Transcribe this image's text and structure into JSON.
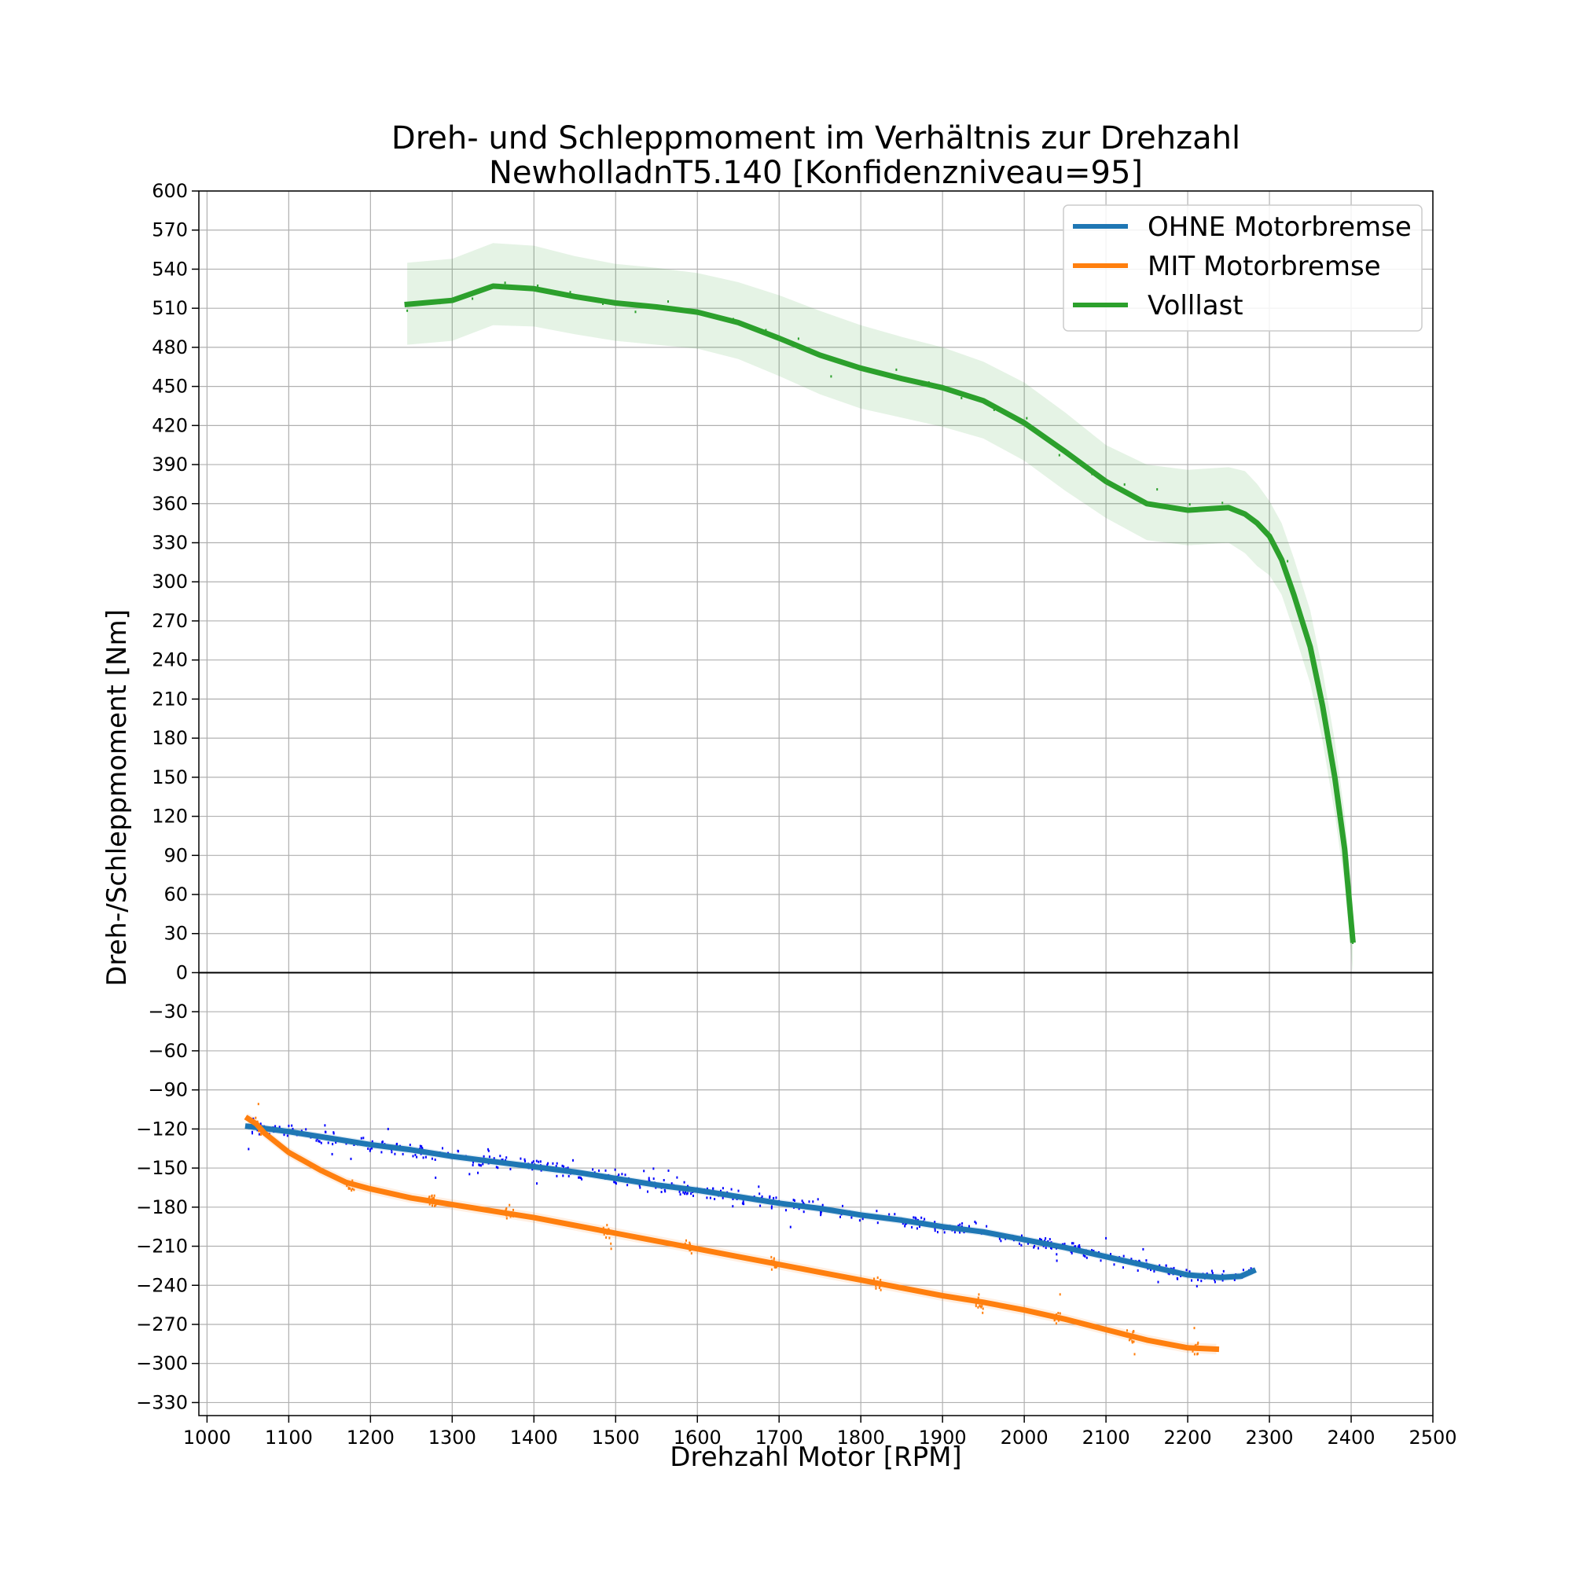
{
  "chart_data": {
    "type": "line",
    "title": "Dreh- und Schleppmoment im Verhältnis zur Drehzahl",
    "subtitle": "NewholladnT5.140 [Konfidenzniveau=95]",
    "xlabel": "Drehzahl Motor [RPM]",
    "ylabel": "Dreh-/Schleppmoment [Nm]",
    "xlim": [
      990,
      2500
    ],
    "ylim": [
      -340,
      600
    ],
    "xticks": [
      1000,
      1100,
      1200,
      1300,
      1400,
      1500,
      1600,
      1700,
      1800,
      1900,
      2000,
      2100,
      2200,
      2300,
      2400,
      2500
    ],
    "yticks": [
      600,
      570,
      540,
      510,
      480,
      450,
      420,
      390,
      360,
      330,
      300,
      270,
      240,
      210,
      180,
      150,
      120,
      90,
      60,
      30,
      0,
      -30,
      -60,
      -90,
      -120,
      -150,
      -180,
      -210,
      -240,
      -270,
      -300,
      -330
    ],
    "xtick_labels": [
      "1000",
      "1100",
      "1200",
      "1300",
      "1400",
      "1500",
      "1600",
      "1700",
      "1800",
      "1900",
      "2000",
      "2100",
      "2200",
      "2300",
      "2400",
      "2500"
    ],
    "ytick_labels": [
      "600",
      "570",
      "540",
      "510",
      "480",
      "450",
      "420",
      "390",
      "360",
      "330",
      "300",
      "270",
      "240",
      "210",
      "180",
      "150",
      "120",
      "90",
      "60",
      "30",
      "0",
      "−30",
      "−60",
      "−90",
      "−120",
      "−150",
      "−180",
      "−210",
      "−240",
      "−270",
      "−300",
      "−330"
    ],
    "grid": true,
    "zero_line": true,
    "legend_position": "top-right",
    "confidence_band": true,
    "series": [
      {
        "name": "OHNE Motorbremse",
        "color": "#1f77b4",
        "scatter_color": "#0000ff",
        "x": [
          1050,
          1100,
          1150,
          1200,
          1250,
          1300,
          1350,
          1400,
          1450,
          1500,
          1550,
          1600,
          1650,
          1700,
          1750,
          1800,
          1850,
          1900,
          1950,
          2000,
          2050,
          2100,
          2150,
          2200,
          2240,
          2265,
          2280
        ],
        "y": [
          -118,
          -122,
          -127,
          -132,
          -136,
          -141,
          -145,
          -149,
          -153,
          -158,
          -163,
          -167,
          -172,
          -177,
          -181,
          -186,
          -190,
          -195,
          -199,
          -205,
          -211,
          -218,
          -225,
          -232,
          -234,
          -233,
          -229
        ],
        "band": 3
      },
      {
        "name": "MIT Motorbremse",
        "color": "#ff7f0e",
        "scatter_color": "#ff7f0e",
        "x": [
          1050,
          1060,
          1070,
          1100,
          1140,
          1170,
          1200,
          1250,
          1300,
          1350,
          1400,
          1450,
          1500,
          1550,
          1600,
          1650,
          1700,
          1750,
          1800,
          1850,
          1900,
          1950,
          2000,
          2050,
          2100,
          2150,
          2200,
          2235
        ],
        "y": [
          -112,
          -116,
          -123,
          -138,
          -152,
          -161,
          -166,
          -173,
          -178,
          -183,
          -188,
          -194,
          -200,
          -206,
          -212,
          -218,
          -224,
          -230,
          -236,
          -242,
          -248,
          -253,
          -259,
          -266,
          -274,
          -282,
          -288,
          -289
        ],
        "band": 4
      },
      {
        "name": "Volllast",
        "color": "#2ca02c",
        "scatter_color": "#2ca02c",
        "x": [
          1245,
          1300,
          1350,
          1400,
          1450,
          1500,
          1550,
          1600,
          1650,
          1700,
          1750,
          1800,
          1850,
          1900,
          1950,
          2000,
          2050,
          2100,
          2150,
          2200,
          2250,
          2270,
          2285,
          2300,
          2315,
          2330,
          2350,
          2365,
          2380,
          2392,
          2402
        ],
        "y": [
          513,
          516,
          527,
          525,
          519,
          514,
          511,
          507,
          499,
          487,
          474,
          464,
          456,
          449,
          439,
          422,
          400,
          377,
          360,
          355,
          357,
          352,
          345,
          335,
          317,
          290,
          250,
          205,
          150,
          95,
          25
        ],
        "band_upper": [
          545,
          548,
          560,
          558,
          550,
          544,
          541,
          537,
          530,
          520,
          508,
          497,
          488,
          480,
          469,
          453,
          430,
          405,
          390,
          386,
          388,
          385,
          375,
          362,
          345,
          318,
          278,
          232,
          178,
          122,
          52
        ],
        "band_lower": [
          482,
          485,
          497,
          496,
          490,
          485,
          482,
          479,
          471,
          458,
          444,
          433,
          426,
          419,
          410,
          393,
          370,
          349,
          332,
          328,
          330,
          322,
          312,
          305,
          290,
          262,
          222,
          178,
          122,
          68,
          0
        ]
      }
    ]
  }
}
